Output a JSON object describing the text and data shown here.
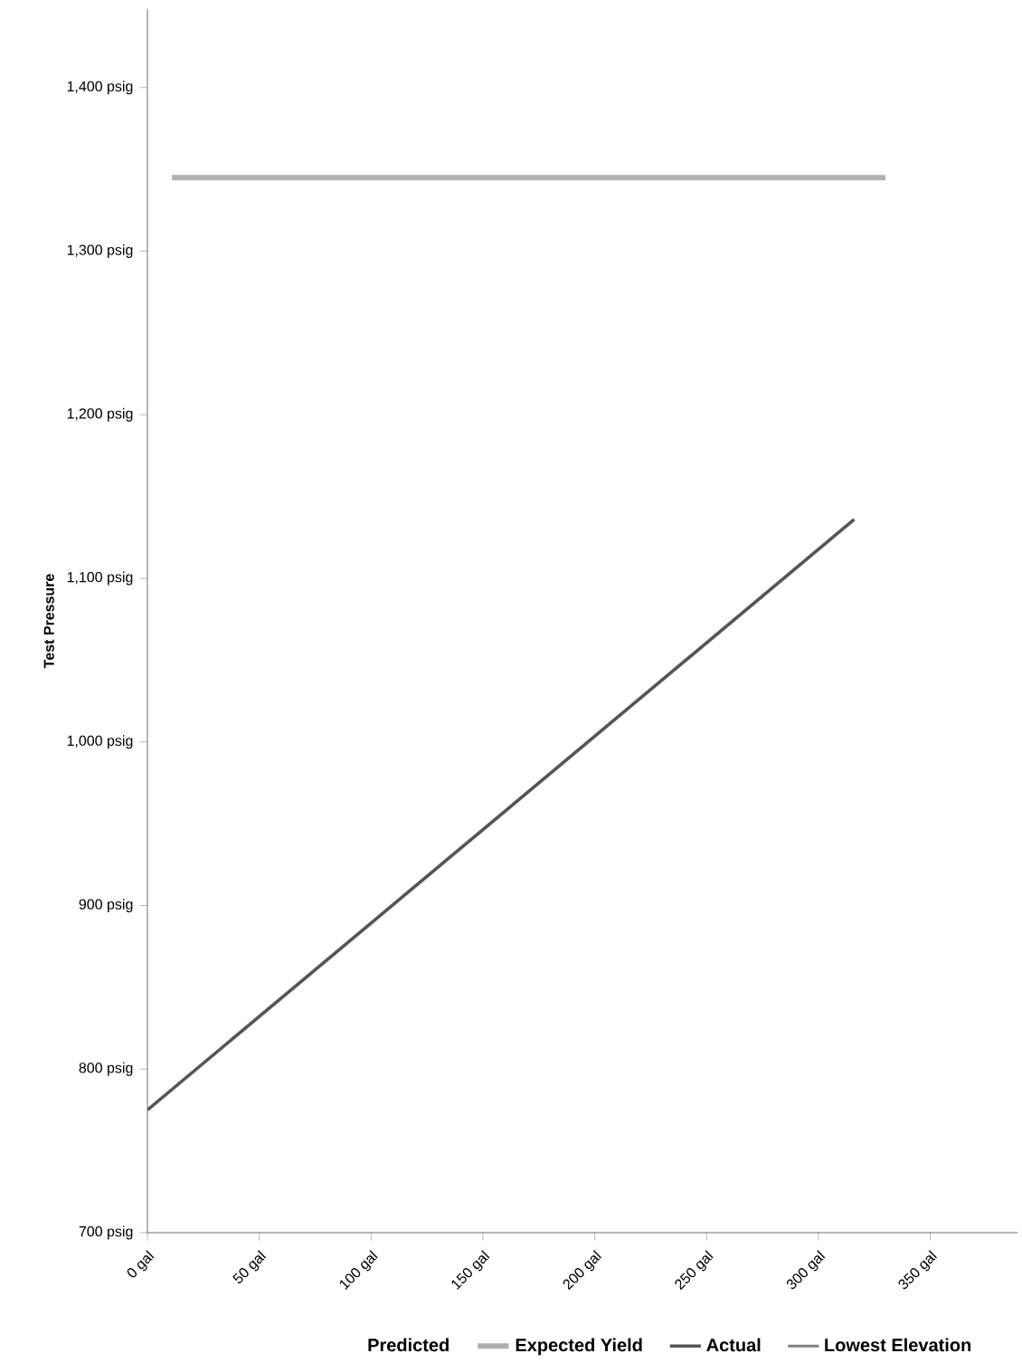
{
  "chart_data": {
    "type": "line",
    "ylabel": "Test Pressure",
    "series": [
      {
        "name": "Predicted"
      },
      {
        "name": "Expected Yield",
        "color": "#b0b0b0",
        "x": [
          11,
          330
        ],
        "values": [
          1345,
          1345
        ]
      },
      {
        "name": "Actual",
        "color": "#555555",
        "x": [
          0,
          316
        ],
        "values": [
          775,
          1136
        ]
      },
      {
        "name": "Lowest Elevation",
        "color": "#808080"
      }
    ],
    "xlim": [
      0,
      389
    ],
    "ylim": [
      700,
      1448
    ],
    "xticks": [
      {
        "value": 0,
        "label": "0 gal"
      },
      {
        "value": 50,
        "label": "50 gal"
      },
      {
        "value": 100,
        "label": "100 gal"
      },
      {
        "value": 150,
        "label": "150 gal"
      },
      {
        "value": 200,
        "label": "200 gal"
      },
      {
        "value": 250,
        "label": "250 gal"
      },
      {
        "value": 300,
        "label": "300 gal"
      },
      {
        "value": 350,
        "label": "350 gal"
      }
    ],
    "yticks": [
      {
        "value": 700,
        "label": "700 psig"
      },
      {
        "value": 800,
        "label": "800 psig"
      },
      {
        "value": 900,
        "label": "900 psig"
      },
      {
        "value": 1000,
        "label": "1,000 psig"
      },
      {
        "value": 1100,
        "label": "1,100 psig"
      },
      {
        "value": 1200,
        "label": "1,200 psig"
      },
      {
        "value": 1300,
        "label": "1,300 psig"
      },
      {
        "value": 1400,
        "label": "1,400 psig"
      }
    ],
    "legend": "bottom"
  }
}
